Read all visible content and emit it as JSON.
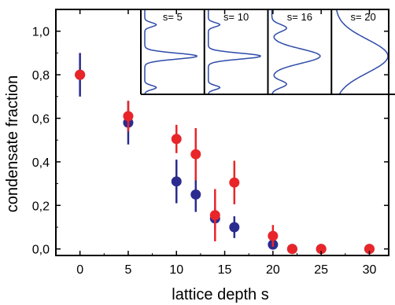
{
  "chart_data": {
    "type": "scatter",
    "xlabel": "lattice depth s",
    "ylabel": "condensate fraction",
    "xlim": [
      -2.5,
      32
    ],
    "ylim": [
      -0.03,
      1.1
    ],
    "x_ticks": [
      0,
      5,
      10,
      15,
      20,
      25,
      30
    ],
    "y_ticks": [
      0.0,
      0.2,
      0.4,
      0.6,
      0.8,
      1.0
    ],
    "x_tick_labels": [
      "0",
      "5",
      "10",
      "15",
      "20",
      "25",
      "30"
    ],
    "y_tick_labels": [
      "0,0",
      "0,2",
      "0,4",
      "0,6",
      "0,8",
      "1,0"
    ],
    "grid": false,
    "series": [
      {
        "color": "#2b2b8f",
        "points": [
          {
            "x": 0,
            "y": 0.8,
            "err": 0.1
          },
          {
            "x": 5,
            "y": 0.58,
            "err": 0.1
          },
          {
            "x": 10,
            "y": 0.31,
            "err": 0.1
          },
          {
            "x": 12,
            "y": 0.25,
            "err": 0.08
          },
          {
            "x": 14,
            "y": 0.14,
            "err": 0.05
          },
          {
            "x": 16,
            "y": 0.1,
            "err": 0.05
          },
          {
            "x": 20,
            "y": 0.02,
            "err": 0.02
          },
          {
            "x": 22,
            "y": 0.0,
            "err": 0
          },
          {
            "x": 25,
            "y": 0.0,
            "err": 0
          },
          {
            "x": 30,
            "y": 0.0,
            "err": 0
          }
        ]
      },
      {
        "color": "#e8262a",
        "points": [
          {
            "x": 0,
            "y": 0.8,
            "err": 0.0
          },
          {
            "x": 5,
            "y": 0.61,
            "err": 0.07
          },
          {
            "x": 10,
            "y": 0.505,
            "err": 0.065
          },
          {
            "x": 12,
            "y": 0.435,
            "err": 0.12
          },
          {
            "x": 14,
            "y": 0.155,
            "err": 0.12
          },
          {
            "x": 16,
            "y": 0.305,
            "err": 0.1
          },
          {
            "x": 20,
            "y": 0.06,
            "err": 0.05
          },
          {
            "x": 22,
            "y": 0.0,
            "err": 0
          },
          {
            "x": 25,
            "y": 0.0,
            "err": 0
          },
          {
            "x": 30,
            "y": 0.0,
            "err": 0
          }
        ]
      }
    ],
    "insets": [
      {
        "label": "s= 5",
        "profile": "spiky",
        "width": 0.05
      },
      {
        "label": "s= 10",
        "profile": "spiky",
        "width": 0.05
      },
      {
        "label": "s= 16",
        "profile": "broad_shoulders",
        "width": 0.12
      },
      {
        "label": "s= 20",
        "profile": "gaussian",
        "width": 0.28
      }
    ],
    "inset_line_color": "#2e4ba8"
  }
}
